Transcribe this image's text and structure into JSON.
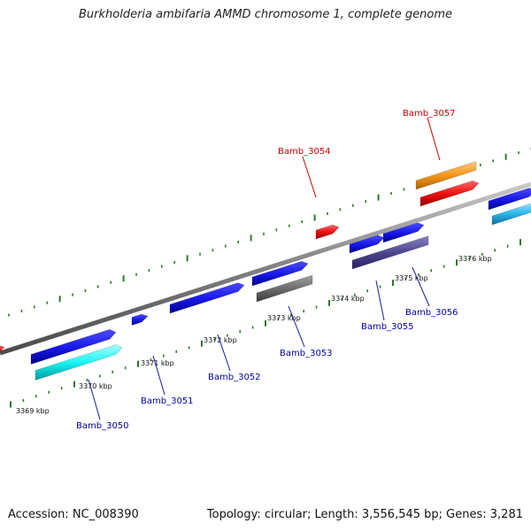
{
  "title": "Burkholderia ambifaria AMMD chromosome 1, complete genome",
  "footer": {
    "accession": "Accession: NC_008390",
    "summary": "Topology: circular; Length: 3,556,545 bp; Genes: 3,281"
  },
  "colors": {
    "dna_line": "#808080",
    "tick": "#2a7a2a",
    "label_forward": "#cc0000",
    "label_reverse": "#0000aa"
  },
  "ticks": [
    {
      "label": "3369 kbp"
    },
    {
      "label": "3370 kbp"
    },
    {
      "label": "3371 kbp"
    },
    {
      "label": "3372 kbp"
    },
    {
      "label": "3373 kbp"
    },
    {
      "label": "3374 kbp"
    },
    {
      "label": "3375 kbp"
    },
    {
      "label": "3376 kbp"
    }
  ],
  "gene_labels": [
    {
      "name": "Bamb_3050"
    },
    {
      "name": "Bamb_3051"
    },
    {
      "name": "Bamb_3052"
    },
    {
      "name": "Bamb_3053"
    },
    {
      "name": "Bamb_3054"
    },
    {
      "name": "Bamb_3055"
    },
    {
      "name": "Bamb_3056"
    },
    {
      "name": "Bamb_3057"
    }
  ]
}
